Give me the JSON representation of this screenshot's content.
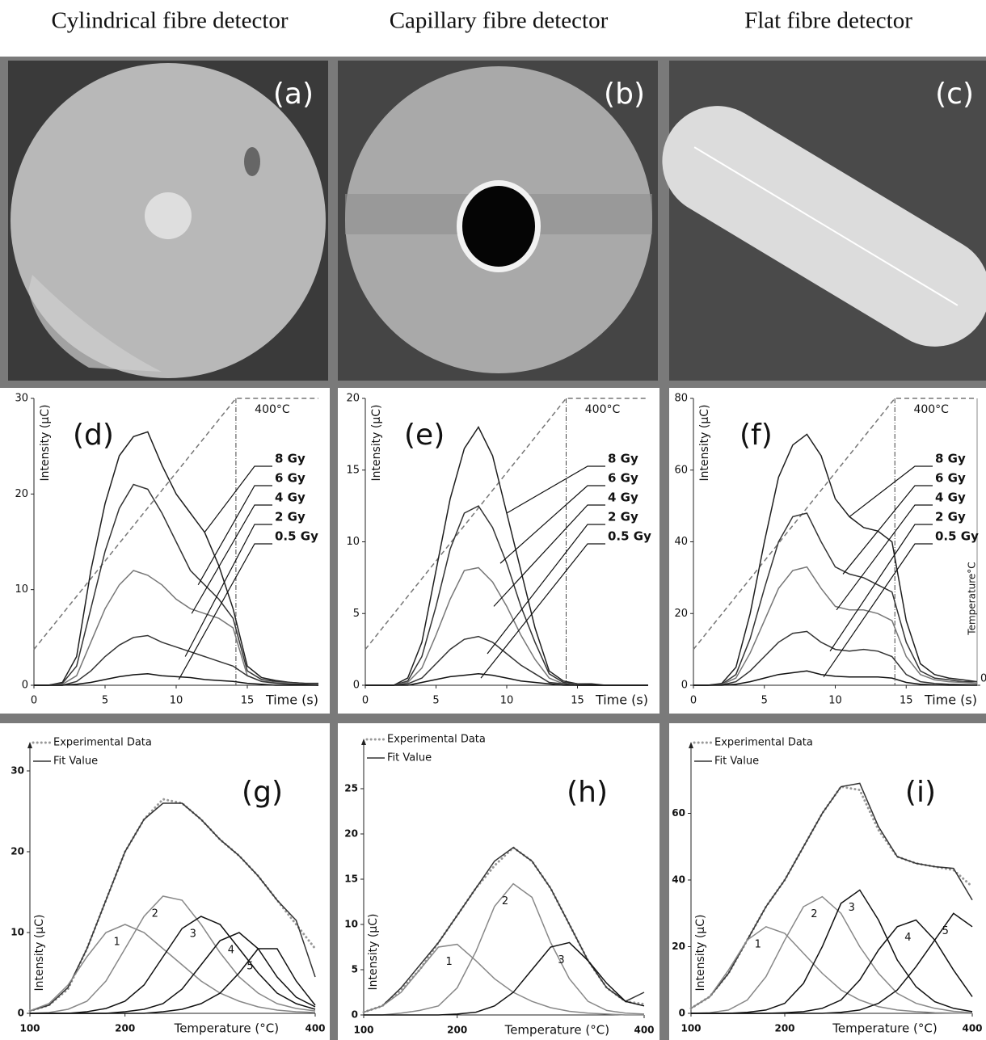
{
  "column_titles": [
    "Cylindrical fibre detector",
    "Capillary fibre detector",
    "Flat fibre detector"
  ],
  "image_panels": [
    {
      "label": "(a)"
    },
    {
      "label": "(b)"
    },
    {
      "label": "(c)"
    }
  ],
  "chart_data": [
    {
      "type": "line",
      "title": "(d)",
      "ylabel": "Intensity (µC)",
      "xlabel": "Time (s)",
      "xlim": [
        0,
        20
      ],
      "xticks": [
        0,
        5,
        10,
        15
      ],
      "ylim": [
        0,
        30
      ],
      "yticks": [
        0,
        10,
        20,
        30
      ],
      "y2lim": [
        0,
        400
      ],
      "x": [
        0,
        1,
        2,
        3,
        4,
        5,
        6,
        7,
        8,
        9,
        10,
        11,
        12,
        13,
        14,
        15,
        16,
        17,
        18,
        19,
        20
      ],
      "series": [
        {
          "name": "8 Gy",
          "color": "#1e1e1e",
          "values": [
            0,
            0,
            0.3,
            3,
            12,
            19,
            24,
            26,
            26.5,
            23,
            20,
            18,
            16,
            12.5,
            8,
            2,
            0.8,
            0.5,
            0.3,
            0.2,
            0.2
          ]
        },
        {
          "name": "6 Gy",
          "color": "#333333",
          "values": [
            0,
            0,
            0.2,
            2,
            8,
            14,
            18.5,
            21,
            20.5,
            18,
            15,
            12,
            10.5,
            9,
            7,
            1.5,
            0.6,
            0.4,
            0.3,
            0.2,
            0.1
          ]
        },
        {
          "name": "4 Gy",
          "color": "#777777",
          "values": [
            0,
            0,
            0.1,
            1,
            4.5,
            8,
            10.5,
            12,
            11.5,
            10.5,
            9,
            8,
            7.5,
            7,
            6,
            1,
            0.4,
            0.3,
            0.2,
            0.1,
            0.1
          ]
        },
        {
          "name": "2 Gy",
          "color": "#333333",
          "values": [
            0,
            0,
            0,
            0.4,
            1.5,
            3,
            4.2,
            5,
            5.2,
            4.5,
            4,
            3.5,
            3,
            2.5,
            2,
            1,
            0.4,
            0.2,
            0.1,
            0.1,
            0
          ]
        },
        {
          "name": "0.5 Gy",
          "color": "#111111",
          "values": [
            0,
            0,
            0,
            0.1,
            0.3,
            0.6,
            0.9,
            1.1,
            1.2,
            1,
            0.9,
            0.8,
            0.6,
            0.5,
            0.4,
            0.2,
            0.1,
            0,
            0,
            0,
            0
          ]
        }
      ],
      "temperature_line": {
        "x": [
          0,
          14.2,
          20
        ],
        "values": [
          50,
          400,
          400
        ],
        "color": "#777777"
      },
      "annotation": "400°C"
    },
    {
      "type": "line",
      "title": "(e)",
      "ylabel": "Intensity (µC)",
      "xlabel": "Time (s)",
      "xlim": [
        0,
        20
      ],
      "xticks": [
        0,
        5,
        10,
        15
      ],
      "ylim": [
        0,
        20
      ],
      "yticks": [
        0,
        5,
        10,
        15,
        20
      ],
      "y2lim": [
        0,
        400
      ],
      "x": [
        0,
        1,
        2,
        3,
        4,
        5,
        6,
        7,
        8,
        9,
        10,
        11,
        12,
        13,
        14,
        15,
        16,
        17,
        18,
        19,
        20
      ],
      "series": [
        {
          "name": "8 Gy",
          "color": "#1e1e1e",
          "values": [
            0,
            0,
            0,
            0.5,
            3,
            8,
            13,
            16.5,
            18,
            16,
            12,
            8,
            4,
            1,
            0.3,
            0.1,
            0.1,
            0,
            0,
            0,
            0
          ]
        },
        {
          "name": "6 Gy",
          "color": "#333333",
          "values": [
            0,
            0,
            0,
            0.3,
            2,
            5.5,
            9.5,
            12,
            12.5,
            11,
            8.5,
            5.5,
            3,
            0.8,
            0.2,
            0.1,
            0,
            0,
            0,
            0,
            0
          ]
        },
        {
          "name": "4 Gy",
          "color": "#777777",
          "values": [
            0,
            0,
            0,
            0.2,
            1.2,
            3.5,
            6,
            8,
            8.2,
            7.2,
            5.5,
            3.5,
            1.8,
            0.5,
            0.1,
            0,
            0,
            0,
            0,
            0,
            0
          ]
        },
        {
          "name": "2 Gy",
          "color": "#333333",
          "values": [
            0,
            0,
            0,
            0.1,
            0.5,
            1.5,
            2.5,
            3.2,
            3.4,
            3,
            2.2,
            1.4,
            0.8,
            0.2,
            0.1,
            0,
            0,
            0,
            0,
            0,
            0
          ]
        },
        {
          "name": "0.5 Gy",
          "color": "#111111",
          "values": [
            0,
            0,
            0,
            0,
            0.2,
            0.4,
            0.6,
            0.7,
            0.8,
            0.7,
            0.5,
            0.3,
            0.2,
            0.1,
            0,
            0,
            0,
            0,
            0,
            0,
            0
          ]
        }
      ],
      "temperature_line": {
        "x": [
          0,
          14.2,
          20
        ],
        "values": [
          50,
          400,
          400
        ],
        "color": "#777777"
      },
      "annotation": "400°C"
    },
    {
      "type": "line",
      "title": "(f)",
      "ylabel": "Intensity (µC)",
      "xlabel": "Time (s)",
      "y2label": "Temperature°C",
      "xlim": [
        0,
        20
      ],
      "xticks": [
        0,
        5,
        10,
        15
      ],
      "ylim": [
        0,
        80
      ],
      "yticks": [
        0,
        20,
        40,
        60,
        80
      ],
      "y2lim": [
        0,
        400
      ],
      "y2ticks": [
        0
      ],
      "x": [
        0,
        1,
        2,
        3,
        4,
        5,
        6,
        7,
        8,
        9,
        10,
        11,
        12,
        13,
        14,
        15,
        16,
        17,
        18,
        19,
        20
      ],
      "series": [
        {
          "name": "8 Gy",
          "color": "#1e1e1e",
          "values": [
            0,
            0,
            0.5,
            5,
            20,
            40,
            58,
            67,
            70,
            64,
            52,
            47,
            44,
            43,
            40,
            18,
            6,
            3,
            2,
            1.5,
            1
          ]
        },
        {
          "name": "6 Gy",
          "color": "#333333",
          "values": [
            0,
            0,
            0.3,
            3,
            13,
            27,
            40,
            47,
            48,
            40,
            33,
            31,
            30,
            28,
            26,
            12,
            4,
            2,
            1.5,
            1,
            1
          ]
        },
        {
          "name": "4 Gy",
          "color": "#777777",
          "values": [
            0,
            0,
            0.2,
            2,
            9,
            18,
            27,
            32,
            33,
            27,
            22,
            21,
            21,
            20,
            18,
            8,
            3,
            1.5,
            1,
            0.8,
            0.5
          ]
        },
        {
          "name": "2 Gy",
          "color": "#333333",
          "values": [
            0,
            0,
            0.1,
            1,
            4,
            8,
            12,
            14.5,
            15,
            12,
            10,
            9.5,
            10,
            9.5,
            8,
            3,
            1,
            0.5,
            0.3,
            0.2,
            0.1
          ]
        },
        {
          "name": "0.5 Gy",
          "color": "#111111",
          "values": [
            0,
            0,
            0,
            0.3,
            1,
            2,
            3,
            3.5,
            4,
            3,
            2.5,
            2.3,
            2.3,
            2.3,
            2,
            0.8,
            0.3,
            0.1,
            0,
            0,
            0
          ]
        }
      ],
      "temperature_line": {
        "x": [
          0,
          14.2,
          20
        ],
        "values": [
          50,
          400,
          400
        ],
        "color": "#777777"
      },
      "annotation": "400°C"
    },
    {
      "type": "line",
      "title": "(g)",
      "ylabel": "Intensity (µC)",
      "xlabel": "Temperature (°C)",
      "xlim": [
        100,
        400
      ],
      "xticks": [
        100,
        200,
        400
      ],
      "ylim": [
        0,
        33
      ],
      "yticks": [
        0,
        10,
        20,
        30
      ],
      "legend": "top-left",
      "x": [
        100,
        120,
        140,
        160,
        180,
        200,
        220,
        240,
        260,
        280,
        300,
        320,
        340,
        360,
        380,
        400
      ],
      "series": [
        {
          "name": "Experimental Data",
          "color": "#999999",
          "dash": "dotted",
          "legend": true,
          "values": [
            0.3,
            1,
            3,
            8,
            14,
            20,
            24,
            26.5,
            26,
            24,
            21.5,
            19.5,
            17,
            14,
            11,
            8
          ]
        },
        {
          "name": "Fit Value",
          "color": "#333333",
          "legend": true,
          "values": [
            0.3,
            1,
            3.2,
            8,
            14,
            20,
            24,
            26,
            26,
            24,
            21.5,
            19.5,
            17,
            14,
            11.5,
            4.5
          ]
        },
        {
          "name": "1",
          "color": "#888888",
          "values": [
            0.3,
            1.2,
            3.5,
            7,
            10,
            11,
            10,
            8,
            6,
            4,
            2.5,
            1.5,
            0.8,
            0.4,
            0.2,
            0.1
          ]
        },
        {
          "name": "2",
          "color": "#888888",
          "values": [
            0,
            0.1,
            0.5,
            1.5,
            4,
            8,
            12,
            14.5,
            14,
            11,
            7.5,
            4.5,
            2.5,
            1.2,
            0.6,
            0.3
          ]
        },
        {
          "name": "3",
          "color": "#111111",
          "values": [
            0,
            0,
            0,
            0.2,
            0.6,
            1.5,
            3.5,
            7,
            10.5,
            12,
            11,
            8,
            5,
            2.5,
            1.2,
            0.5
          ]
        },
        {
          "name": "4",
          "color": "#111111",
          "values": [
            0,
            0,
            0,
            0,
            0,
            0.2,
            0.5,
            1.2,
            3,
            6,
            9,
            10,
            8,
            4.5,
            2,
            0.8
          ]
        },
        {
          "name": "5",
          "color": "#111111",
          "values": [
            0,
            0,
            0,
            0,
            0,
            0,
            0,
            0.2,
            0.5,
            1.2,
            2.5,
            5,
            8,
            8,
            4,
            1
          ]
        }
      ]
    },
    {
      "type": "line",
      "title": "(h)",
      "ylabel": "Intensity (µC)",
      "xlabel": "Temperature (°C)",
      "xlim": [
        100,
        400
      ],
      "xticks": [
        100,
        200,
        400
      ],
      "ylim": [
        0,
        30
      ],
      "yticks": [
        0,
        5,
        10,
        15,
        20,
        25
      ],
      "legend": "top-left",
      "x": [
        100,
        120,
        140,
        160,
        180,
        200,
        220,
        240,
        260,
        280,
        300,
        320,
        340,
        360,
        380,
        400
      ],
      "series": [
        {
          "name": "Experimental Data",
          "color": "#999999",
          "dash": "dotted",
          "legend": true,
          "values": [
            0.3,
            1,
            2.8,
            5,
            8,
            11,
            14,
            16.5,
            18.5,
            17,
            14,
            10,
            6,
            3,
            1.5,
            1.2
          ]
        },
        {
          "name": "Fit Value",
          "color": "#333333",
          "legend": true,
          "values": [
            0.3,
            1,
            3,
            5.5,
            8,
            11,
            14,
            17,
            18.5,
            17,
            14,
            10,
            6,
            3,
            1.5,
            2.5
          ]
        },
        {
          "name": "1",
          "color": "#888888",
          "values": [
            0.3,
            1,
            2.5,
            5,
            7.5,
            7.8,
            6,
            4,
            2.5,
            1.5,
            0.8,
            0.4,
            0.2,
            0.1,
            0,
            0
          ]
        },
        {
          "name": "2",
          "color": "#888888",
          "values": [
            0,
            0,
            0.2,
            0.5,
            1,
            3,
            7,
            12,
            14.5,
            13,
            8,
            4,
            1.5,
            0.5,
            0.2,
            0.1
          ]
        },
        {
          "name": "3",
          "color": "#111111",
          "values": [
            0,
            0,
            0,
            0,
            0,
            0.1,
            0.3,
            1,
            2.5,
            5,
            7.5,
            8,
            6,
            3.5,
            1.5,
            1
          ]
        }
      ]
    },
    {
      "type": "line",
      "title": "(i)",
      "ylabel": "Intensity (µC)",
      "xlabel": "Temperature (°C)",
      "xlim": [
        100,
        400
      ],
      "xticks": [
        100,
        200,
        400
      ],
      "ylim": [
        0,
        80
      ],
      "yticks": [
        0,
        20,
        40,
        60
      ],
      "legend": "top-left",
      "x": [
        100,
        120,
        140,
        160,
        180,
        200,
        220,
        240,
        260,
        280,
        300,
        320,
        340,
        360,
        380,
        400
      ],
      "series": [
        {
          "name": "Experimental Data",
          "color": "#999999",
          "dash": "dotted",
          "legend": true,
          "values": [
            1.5,
            5,
            12,
            22,
            32,
            40,
            50,
            60,
            68,
            67,
            55,
            47,
            45,
            44,
            43,
            38
          ]
        },
        {
          "name": "Fit Value",
          "color": "#333333",
          "legend": true,
          "values": [
            1.5,
            5,
            12,
            22,
            32,
            40,
            50,
            60,
            68,
            69,
            56,
            47,
            45,
            44,
            43.5,
            34
          ]
        },
        {
          "name": "1",
          "color": "#888888",
          "values": [
            1.5,
            5,
            13,
            22,
            26,
            24,
            18,
            12,
            7,
            4,
            2,
            1,
            0.5,
            0.2,
            0.1,
            0
          ]
        },
        {
          "name": "2",
          "color": "#888888",
          "values": [
            0,
            0.2,
            1,
            4,
            11,
            22,
            32,
            35,
            30,
            20,
            12,
            6,
            3,
            1.5,
            0.6,
            0.2
          ]
        },
        {
          "name": "3",
          "color": "#111111",
          "values": [
            0,
            0,
            0,
            0.3,
            1,
            3,
            9,
            20,
            33,
            37,
            28,
            16,
            8,
            3.5,
            1.5,
            0.5
          ]
        },
        {
          "name": "4",
          "color": "#111111",
          "values": [
            0,
            0,
            0,
            0,
            0,
            0.2,
            0.5,
            1.5,
            4,
            10,
            19,
            26,
            28,
            22,
            13,
            5
          ]
        },
        {
          "name": "5",
          "color": "#111111",
          "values": [
            0,
            0,
            0,
            0,
            0,
            0,
            0,
            0,
            0.3,
            1,
            3,
            7,
            14,
            22,
            30,
            26
          ]
        }
      ]
    }
  ]
}
